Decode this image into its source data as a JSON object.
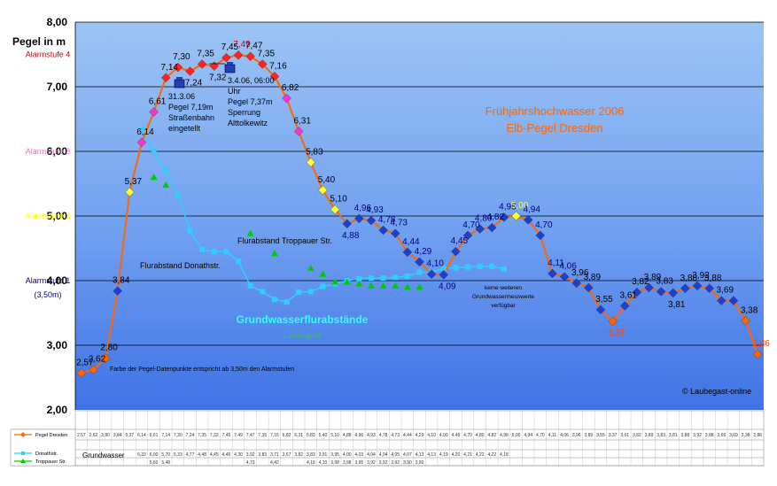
{
  "chart_data": {
    "type": "line",
    "title": "Frühjahrshochwasser 2006",
    "subtitle": "Elb-Pegel Dresden",
    "ylabel": "Pegel in m",
    "ylim": [
      2.0,
      8.0
    ],
    "yticks": [
      "2,00",
      "3,00",
      "4,00",
      "5,00",
      "6,00",
      "7,00",
      "8,00"
    ],
    "grid": true,
    "alarm_labels": [
      {
        "text": "Alarmstufe 4",
        "y": 7.5,
        "color": "#cc0000"
      },
      {
        "text": "Alarmstufe 3",
        "y": 6.0,
        "color": "#ff66cc"
      },
      {
        "text": "Alarmstufe 2",
        "y": 5.0,
        "color": "#ffff00"
      },
      {
        "text": "Alarmstufe 1",
        "y": 4.0,
        "color": "#000080"
      },
      {
        "text": "(3,50m)",
        "y": 3.78,
        "color": "#000080"
      }
    ],
    "series": [
      {
        "name": "Pegel Dresden",
        "color": "#ff6600",
        "values": [
          2.57,
          2.62,
          2.8,
          3.84,
          5.37,
          6.14,
          6.61,
          7.14,
          7.3,
          7.24,
          7.35,
          7.32,
          7.45,
          7.49,
          7.47,
          7.35,
          7.16,
          6.82,
          6.31,
          5.83,
          5.4,
          5.1,
          4.88,
          4.96,
          4.93,
          4.78,
          4.73,
          4.44,
          4.29,
          4.1,
          4.09,
          4.45,
          4.7,
          4.8,
          4.82,
          4.98,
          5.0,
          4.94,
          4.7,
          4.11,
          4.06,
          3.96,
          3.89,
          3.55,
          3.37,
          3.61,
          3.82,
          3.89,
          3.83,
          3.81,
          3.88,
          3.92,
          3.88,
          3.69,
          3.69,
          3.38,
          2.86
        ],
        "labels": [
          "2,57",
          "2,62",
          "2,80",
          "3,84",
          "5,37",
          "6,14",
          "6,61",
          "7,14",
          "7,30",
          "7,24",
          "7,35",
          "7,32",
          "7,45",
          "7,49",
          "7,47",
          "7,35",
          "7,16",
          "6,82",
          "6,31",
          "5,83",
          "5,40",
          "5,10",
          "4,88",
          "4,96",
          "4,93",
          "4,78",
          "4,73",
          "4,44",
          "4,29",
          "4,10",
          "4,09",
          "4,45",
          "4,70",
          "4,80",
          "4,82",
          "4,98",
          "5,00",
          "4,94",
          "4,70",
          "4,11",
          "4,06",
          "3,96",
          "3,89",
          "3,55",
          "3,37",
          "3,61",
          "3,82",
          "3,89",
          "3,83",
          "3,81",
          "3,88",
          "3,92",
          "3,88",
          "3,69",
          "",
          "3,38",
          "2,86"
        ]
      },
      {
        "name": "Donathstr.",
        "color": "#33ccff",
        "values": [
          null,
          null,
          null,
          null,
          null,
          6.33,
          6.0,
          5.7,
          5.33,
          4.77,
          4.48,
          4.45,
          4.45,
          4.3,
          3.92,
          3.83,
          3.71,
          3.67,
          3.82,
          3.83,
          3.91,
          3.95,
          4.0,
          4.03,
          4.04,
          4.04,
          4.05,
          4.07,
          4.13,
          4.13,
          4.19,
          4.2,
          4.21,
          4.22,
          4.22,
          4.18
        ]
      },
      {
        "name": "Troppauer Str.",
        "color": "#00cc00",
        "values": [
          null,
          null,
          null,
          null,
          null,
          null,
          5.6,
          5.48,
          null,
          null,
          null,
          null,
          null,
          null,
          4.73,
          null,
          4.42,
          null,
          null,
          4.19,
          4.1,
          3.98,
          3.98,
          3.95,
          3.92,
          3.92,
          3.92,
          3.9,
          3.9
        ]
      }
    ],
    "annotations": [
      {
        "text": "31.3.06",
        "color": "#000000"
      },
      {
        "text": "Pegel 7,19m",
        "color": "#000000"
      },
      {
        "text": "Straßenbahn",
        "color": "#000000"
      },
      {
        "text": "eingetellt",
        "color": "#000000"
      },
      {
        "text": "3.4.06, 06:00",
        "color": "#000000"
      },
      {
        "text": "Uhr",
        "color": "#000000"
      },
      {
        "text": "Pegel 7,37m",
        "color": "#000000"
      },
      {
        "text": "Sperrung",
        "color": "#000000"
      },
      {
        "text": "Alttolkewitz",
        "color": "#000000"
      },
      {
        "text": "Flurabstand Troppauer Str.",
        "color": "#000000"
      },
      {
        "text": "Flurabstand Donathstr.",
        "color": "#000000"
      },
      {
        "text": "Grundwasserflurabstände",
        "color": "#33ffff"
      },
      {
        "text": "Laubegast",
        "color": "#33cc33"
      },
      {
        "text": "keine weiteren",
        "color": "#000000"
      },
      {
        "text": "Grundwassermesswerte",
        "color": "#000000"
      },
      {
        "text": "verfügbar",
        "color": "#000000"
      },
      {
        "text": "Farbe der Pegel-Datenpunkte entspricht ab 3,50m den Alarmstufen",
        "color": "#000000"
      },
      {
        "text": "© Laubegast-online",
        "color": "#000000"
      }
    ],
    "legend": {
      "placement": "bottom-left",
      "group_label": "Grundwasser"
    }
  }
}
